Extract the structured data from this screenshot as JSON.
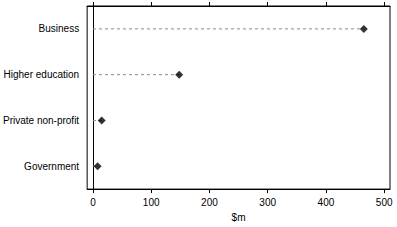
{
  "chart_data": {
    "type": "dot",
    "orientation": "horizontal",
    "categories": [
      "Business",
      "Higher education",
      "Private non-profit",
      "Government"
    ],
    "values": [
      465,
      148,
      15,
      8
    ],
    "color": "#000000",
    "marker": "diamond",
    "line_style": "dashed",
    "xlabel": "$m",
    "xlim": [
      -10,
      510
    ],
    "xticks": [
      0,
      100,
      200,
      300,
      400,
      500
    ]
  }
}
